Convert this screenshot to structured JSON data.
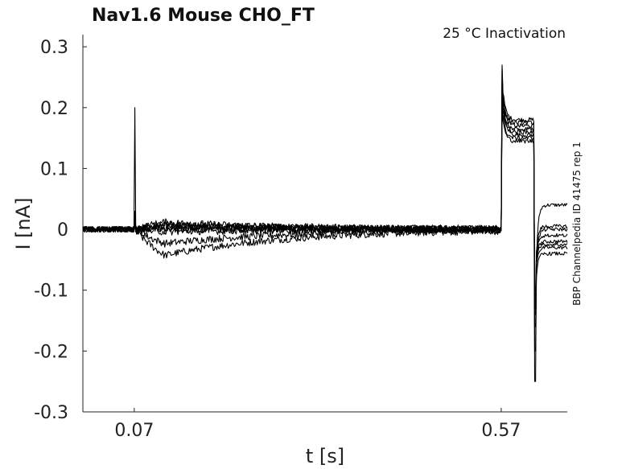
{
  "chart_data": {
    "type": "line",
    "title": "Nav1.6  Mouse  CHO_FT",
    "annotation": "25 °C  Inactivation",
    "side_label": "BBP Channelpedia ID 41475 rep 1",
    "xlabel": "t [s]",
    "ylabel": "I [nA]",
    "xlim": [
      0.0,
      0.66
    ],
    "ylim": [
      -0.3,
      0.32
    ],
    "xticks": [
      0.07,
      0.57
    ],
    "xtick_labels": [
      "0.07",
      "0.57"
    ],
    "yticks": [
      0.3,
      0.2,
      0.1,
      0,
      -0.1,
      -0.2,
      -0.3
    ],
    "ytick_labels": [
      "0.3",
      "0.2",
      "0.1",
      "0",
      "-0.1",
      "-0.2",
      "-0.3"
    ],
    "grid": false,
    "line_color": "#000000",
    "events": {
      "conditioning_start": 0.07,
      "test_start": 0.57,
      "test_end": 0.615
    },
    "series": [
      {
        "transient_peak": 0.2,
        "baseline_drift": 0.008,
        "test_level": 0.18,
        "test_peak": 0.27,
        "tail_min": -0.25,
        "tail_level": 0.04
      },
      {
        "transient_peak": 0.03,
        "baseline_drift": -0.055,
        "test_level": 0.155,
        "test_peak": 0.265,
        "tail_min": -0.12,
        "tail_level": -0.03
      },
      {
        "transient_peak": 0.028,
        "baseline_drift": -0.03,
        "test_level": 0.17,
        "test_peak": 0.25,
        "tail_min": -0.13,
        "tail_level": -0.02
      },
      {
        "transient_peak": 0.02,
        "baseline_drift": 0.015,
        "test_level": 0.16,
        "test_peak": 0.24,
        "tail_min": -0.2,
        "tail_level": 0.0
      },
      {
        "transient_peak": 0.018,
        "baseline_drift": 0.01,
        "test_level": 0.175,
        "test_peak": 0.26,
        "tail_min": -0.16,
        "tail_level": -0.04
      },
      {
        "transient_peak": 0.015,
        "baseline_drift": 0.005,
        "test_level": 0.15,
        "test_peak": 0.22,
        "tail_min": -0.14,
        "tail_level": 0.005
      },
      {
        "transient_peak": 0.012,
        "baseline_drift": 0.0,
        "test_level": 0.165,
        "test_peak": 0.23,
        "tail_min": -0.1,
        "tail_level": -0.01
      },
      {
        "transient_peak": 0.01,
        "baseline_drift": -0.005,
        "test_level": 0.145,
        "test_peak": 0.21,
        "tail_min": -0.11,
        "tail_level": -0.025
      }
    ]
  }
}
